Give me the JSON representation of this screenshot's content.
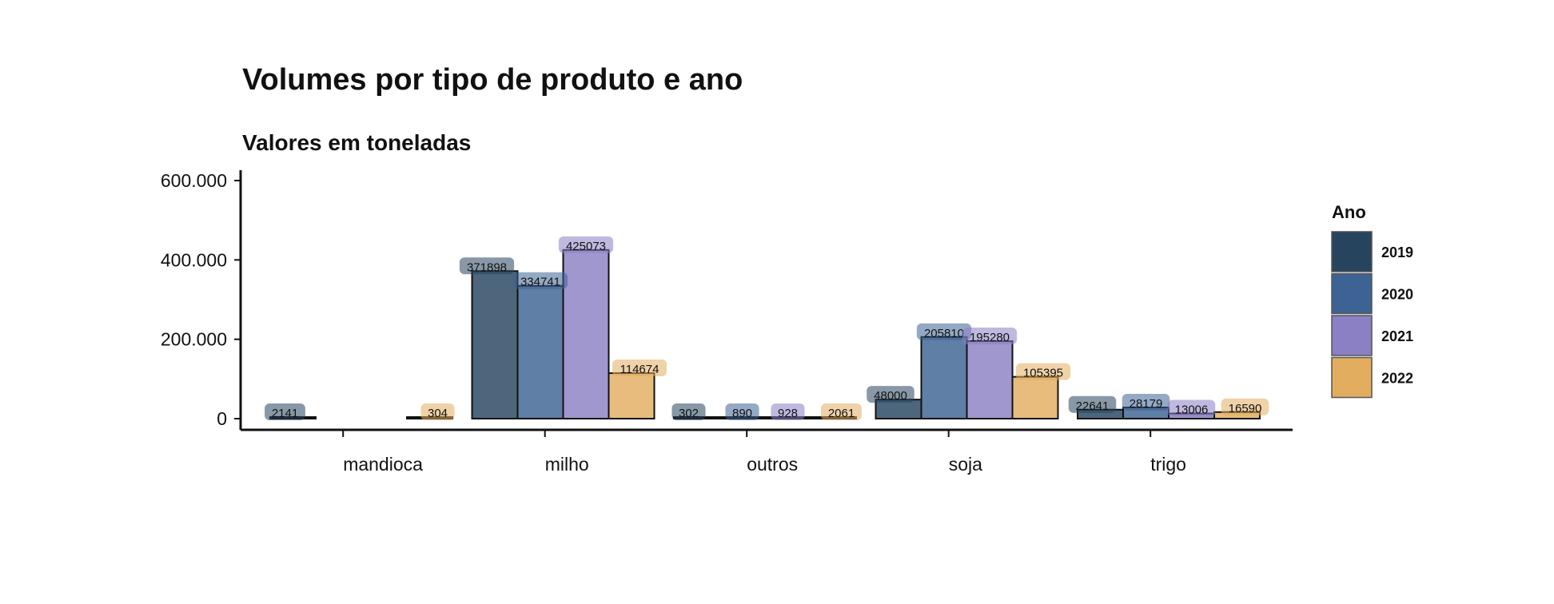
{
  "chart_data": {
    "type": "bar",
    "title": "Volumes por tipo de produto e ano",
    "subtitle": "Valores em toneladas",
    "xlabel": "",
    "ylabel": "",
    "ylim": [
      0,
      600000
    ],
    "y_ticks": [
      0,
      200000,
      400000,
      600000
    ],
    "y_tick_labels": [
      "0",
      "200.000",
      "400.000",
      "600.000"
    ],
    "categories": [
      "mandioca",
      "milho",
      "outros",
      "soja",
      "trigo"
    ],
    "legend": {
      "title": "Ano",
      "position": "right"
    },
    "grid": false,
    "series": [
      {
        "name": "2019",
        "color": "#26445e",
        "values": [
          2141,
          371898,
          302,
          48000,
          22641
        ]
      },
      {
        "name": "2020",
        "color": "#3d6394",
        "values": [
          null,
          334741,
          890,
          205810,
          28179
        ]
      },
      {
        "name": "2021",
        "color": "#8b80c4",
        "values": [
          null,
          425073,
          928,
          195280,
          13006
        ]
      },
      {
        "name": "2022",
        "color": "#e2ad5f",
        "values": [
          304,
          114674,
          2061,
          105395,
          16590
        ]
      }
    ]
  }
}
